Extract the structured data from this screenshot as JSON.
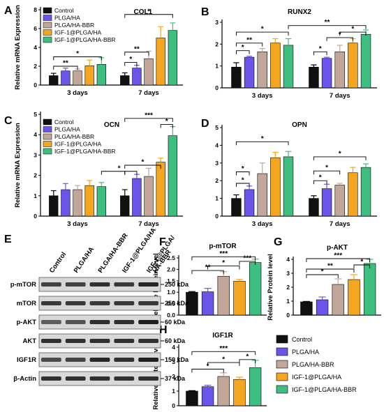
{
  "groups": [
    "Control",
    "PLGA/HA",
    "PLGA/HA-BBR",
    "IGF-1@PLGA/HA",
    "IGF-1@PLGA/HA-BBR"
  ],
  "colors": {
    "Control": "#111111",
    "PLGA/HA": "#6a55e8",
    "PLGA/HA-BBR": "#c1a699",
    "IGF-1@PLGA/HA": "#f4a620",
    "IGF-1@PLGA/HA-BBR": "#3fbf7f"
  },
  "chart_data": [
    {
      "id": "A",
      "type": "bar",
      "title": "COL1",
      "ylabel": "Relative mRNA Expression",
      "ylim": [
        0,
        8
      ],
      "yticks": [
        0,
        2,
        4,
        6,
        8
      ],
      "categories": [
        "3 days",
        "7 days"
      ],
      "legend": "top-left",
      "series": [
        {
          "name": "Control",
          "values": [
            1.0,
            1.0
          ],
          "errors": [
            0.25,
            0.3
          ]
        },
        {
          "name": "PLGA/HA",
          "values": [
            1.5,
            1.8
          ],
          "errors": [
            0.3,
            0.3
          ]
        },
        {
          "name": "PLGA/HA-BBR",
          "values": [
            1.5,
            2.8
          ],
          "errors": [
            0.2,
            0.8
          ]
        },
        {
          "name": "IGF-1@PLGA/HA",
          "values": [
            2.05,
            5.0
          ],
          "errors": [
            0.6,
            1.2
          ]
        },
        {
          "name": "IGF-1@PLGA/HA-BBR",
          "values": [
            2.2,
            5.8
          ],
          "errors": [
            0.7,
            0.8
          ]
        }
      ],
      "significance": [
        {
          "label": "**",
          "y": 2.0,
          "spans": [
            [
              0,
              0,
              0,
              2
            ]
          ]
        },
        {
          "label": "*",
          "y": 3.0,
          "spans": [
            [
              0,
              0,
              0,
              4
            ]
          ]
        },
        {
          "label": "*",
          "y": 2.4,
          "spans": [
            [
              1,
              0,
              1,
              1
            ]
          ]
        },
        {
          "label": "**",
          "y": 3.5,
          "spans": [
            [
              1,
              0,
              1,
              2
            ]
          ]
        },
        {
          "label": "*",
          "y": 7.5,
          "spans": [
            [
              1,
              0,
              1,
              4
            ]
          ]
        }
      ]
    },
    {
      "id": "B",
      "type": "bar",
      "title": "RUNX2",
      "ylabel": "",
      "ylim": [
        0,
        3
      ],
      "yticks": [
        0,
        1,
        2,
        3
      ],
      "categories": [
        "3 days",
        "7 days"
      ],
      "series": [
        {
          "name": "Control",
          "values": [
            0.95,
            0.95
          ],
          "errors": [
            0.2,
            0.1
          ]
        },
        {
          "name": "PLGA/HA",
          "values": [
            1.4,
            1.35
          ],
          "errors": [
            0.05,
            0.05
          ]
        },
        {
          "name": "PLGA/HA-BBR",
          "values": [
            1.65,
            1.65
          ],
          "errors": [
            0.15,
            0.3
          ]
        },
        {
          "name": "IGF-1@PLGA/HA",
          "values": [
            2.05,
            2.05
          ],
          "errors": [
            0.2,
            0.2
          ]
        },
        {
          "name": "IGF-1@PLGA/HA-BBR",
          "values": [
            1.95,
            2.45
          ],
          "errors": [
            0.3,
            0.2
          ]
        }
      ],
      "significance": [
        {
          "label": "*",
          "y": 1.7,
          "spans": [
            [
              0,
              0,
              0,
              1
            ]
          ]
        },
        {
          "label": "**",
          "y": 2.05,
          "spans": [
            [
              0,
              0,
              0,
              2
            ]
          ]
        },
        {
          "label": "*",
          "y": 2.55,
          "spans": [
            [
              0,
              0,
              0,
              4
            ]
          ]
        },
        {
          "label": "*",
          "y": 1.65,
          "spans": [
            [
              1,
              0,
              1,
              1
            ]
          ]
        },
        {
          "label": "*",
          "y": 2.3,
          "spans": [
            [
              1,
              1,
              1,
              3
            ]
          ]
        },
        {
          "label": "*",
          "y": 2.55,
          "spans": [
            [
              1,
              2,
              1,
              4
            ]
          ]
        },
        {
          "label": "**",
          "y": 2.85,
          "spans": [
            [
              0,
              4,
              1,
              4
            ]
          ]
        }
      ]
    },
    {
      "id": "C",
      "type": "bar",
      "title": "OCN",
      "ylabel": "Relative mRNA Expression",
      "ylim": [
        0,
        5
      ],
      "yticks": [
        0,
        1,
        2,
        3,
        4,
        5
      ],
      "categories": [
        "3 days",
        "7 days"
      ],
      "legend": "top-left",
      "series": [
        {
          "name": "Control",
          "values": [
            1.0,
            1.0
          ],
          "errors": [
            0.25,
            0.3
          ]
        },
        {
          "name": "PLGA/HA",
          "values": [
            1.3,
            1.85
          ],
          "errors": [
            0.3,
            0.2
          ]
        },
        {
          "name": "PLGA/HA-BBR",
          "values": [
            1.3,
            1.95
          ],
          "errors": [
            0.2,
            0.4
          ]
        },
        {
          "name": "IGF-1@PLGA/HA",
          "values": [
            1.5,
            2.65
          ],
          "errors": [
            0.25,
            0.2
          ]
        },
        {
          "name": "IGF-1@PLGA/HA-BBR",
          "values": [
            1.45,
            3.95
          ],
          "errors": [
            0.2,
            0.45
          ]
        }
      ],
      "significance": [
        {
          "label": "*",
          "y": 2.2,
          "spans": [
            [
              0,
              4,
              1,
              0
            ],
            [
              1,
              0,
              1,
              1
            ]
          ]
        },
        {
          "label": "*",
          "y": 2.5,
          "spans": [
            [
              1,
              0,
              1,
              3
            ]
          ]
        },
        {
          "label": "*",
          "y": 4.5,
          "spans": [
            [
              1,
              3,
              1,
              4
            ]
          ]
        },
        {
          "label": "***",
          "y": 4.8,
          "spans": [
            [
              1,
              0,
              1,
              4
            ]
          ]
        }
      ]
    },
    {
      "id": "D",
      "type": "bar",
      "title": "OPN",
      "ylabel": "",
      "ylim": [
        0,
        5
      ],
      "yticks": [
        0,
        1,
        2,
        3,
        4,
        5
      ],
      "categories": [
        "3 days",
        "7 days"
      ],
      "series": [
        {
          "name": "Control",
          "values": [
            1.0,
            1.0
          ],
          "errors": [
            0.2,
            0.15
          ]
        },
        {
          "name": "PLGA/HA",
          "values": [
            1.5,
            1.55
          ],
          "errors": [
            0.2,
            0.25
          ]
        },
        {
          "name": "PLGA/HA-BBR",
          "values": [
            2.4,
            1.75
          ],
          "errors": [
            0.6,
            0.1
          ]
        },
        {
          "name": "IGF-1@PLGA/HA",
          "values": [
            3.3,
            2.45
          ],
          "errors": [
            0.3,
            0.3
          ]
        },
        {
          "name": "IGF-1@PLGA/HA-BBR",
          "values": [
            3.35,
            2.75
          ],
          "errors": [
            0.3,
            0.2
          ]
        }
      ],
      "significance": [
        {
          "label": "*",
          "y": 1.85,
          "spans": [
            [
              0,
              0,
              0,
              1
            ]
          ]
        },
        {
          "label": "*",
          "y": 2.5,
          "spans": [
            [
              0,
              0,
              0,
              1
            ]
          ]
        },
        {
          "label": "*",
          "y": 4.2,
          "spans": [
            [
              0,
              0,
              0,
              4
            ]
          ]
        },
        {
          "label": "*",
          "y": 2.0,
          "spans": [
            [
              1,
              0,
              1,
              1
            ]
          ]
        },
        {
          "label": "*",
          "y": 2.55,
          "spans": [
            [
              1,
              0,
              1,
              2
            ]
          ]
        },
        {
          "label": "*",
          "y": 3.35,
          "spans": [
            [
              1,
              0,
              1,
              4
            ]
          ]
        }
      ]
    },
    {
      "id": "F",
      "type": "bar",
      "title": "p-mTOR",
      "ylabel": "Relative Protein level",
      "ylim": [
        0,
        2.5
      ],
      "yticks": [
        0.0,
        0.5,
        1.0,
        1.5,
        2.0,
        2.5
      ],
      "categories": [
        ""
      ],
      "series": [
        {
          "name": "Control",
          "values": [
            1.0
          ],
          "errors": [
            0.03
          ]
        },
        {
          "name": "PLGA/HA",
          "values": [
            1.02
          ],
          "errors": [
            0.15
          ]
        },
        {
          "name": "PLGA/HA-BBR",
          "values": [
            1.7
          ],
          "errors": [
            0.2
          ]
        },
        {
          "name": "IGF-1@PLGA/HA",
          "values": [
            1.48
          ],
          "errors": [
            0.08
          ]
        },
        {
          "name": "IGF-1@PLGA/HA-BBR",
          "values": [
            2.3
          ],
          "errors": [
            0.15
          ]
        }
      ],
      "significance": [
        {
          "label": "**",
          "y": 1.95,
          "spans": [
            [
              0,
              0,
              0,
              2
            ]
          ]
        },
        {
          "label": "*",
          "y": 2.15,
          "spans": [
            [
              0,
              1,
              0,
              3
            ]
          ]
        },
        {
          "label": "***",
          "y": 2.35,
          "spans": [
            [
              0,
              3,
              0,
              4
            ]
          ]
        },
        {
          "label": "***",
          "y": 2.55,
          "spans": [
            [
              0,
              0,
              0,
              4
            ]
          ]
        }
      ]
    },
    {
      "id": "G",
      "type": "bar",
      "title": "p-AKT",
      "ylabel": "Relative Protein level",
      "ylim": [
        0,
        4
      ],
      "yticks": [
        0,
        1,
        2,
        3,
        4
      ],
      "categories": [
        ""
      ],
      "series": [
        {
          "name": "Control",
          "values": [
            0.95
          ],
          "errors": [
            0.03
          ]
        },
        {
          "name": "PLGA/HA",
          "values": [
            1.1
          ],
          "errors": [
            0.2
          ]
        },
        {
          "name": "PLGA/HA-BBR",
          "values": [
            2.2
          ],
          "errors": [
            0.4
          ]
        },
        {
          "name": "IGF-1@PLGA/HA",
          "values": [
            2.55
          ],
          "errors": [
            0.35
          ]
        },
        {
          "name": "IGF-1@PLGA/HA-BBR",
          "values": [
            3.7
          ],
          "errors": [
            0.3
          ]
        }
      ],
      "significance": [
        {
          "label": "*",
          "y": 2.9,
          "spans": [
            [
              0,
              0,
              0,
              2
            ]
          ]
        },
        {
          "label": "**",
          "y": 3.3,
          "spans": [
            [
              0,
              0,
              0,
              3
            ]
          ]
        },
        {
          "label": "*",
          "y": 3.6,
          "spans": [
            [
              0,
              3,
              0,
              4
            ]
          ]
        },
        {
          "label": "***",
          "y": 4.05,
          "spans": [
            [
              0,
              0,
              0,
              4
            ]
          ]
        }
      ]
    },
    {
      "id": "H",
      "type": "bar",
      "title": "IGF1R",
      "ylabel": "Relative Protein level",
      "ylim": [
        0,
        4
      ],
      "yticks": [
        0,
        1,
        2,
        3,
        4
      ],
      "categories": [
        ""
      ],
      "series": [
        {
          "name": "Control",
          "values": [
            1.0
          ],
          "errors": [
            0.03
          ]
        },
        {
          "name": "PLGA/HA",
          "values": [
            1.3
          ],
          "errors": [
            0.1
          ]
        },
        {
          "name": "PLGA/HA-BBR",
          "values": [
            2.0
          ],
          "errors": [
            0.25
          ]
        },
        {
          "name": "IGF-1@PLGA/HA",
          "values": [
            1.8
          ],
          "errors": [
            0.15
          ]
        },
        {
          "name": "IGF-1@PLGA/HA-BBR",
          "values": [
            2.6
          ],
          "errors": [
            0.5
          ]
        }
      ],
      "significance": [
        {
          "label": "*",
          "y": 2.5,
          "spans": [
            [
              0,
              0,
              0,
              2
            ]
          ]
        },
        {
          "label": "*",
          "y": 2.95,
          "spans": [
            [
              0,
              1,
              0,
              3
            ]
          ]
        },
        {
          "label": "*",
          "y": 3.15,
          "spans": [
            [
              0,
              3,
              0,
              4
            ]
          ]
        },
        {
          "label": "***",
          "y": 3.7,
          "spans": [
            [
              0,
              0,
              0,
              4
            ]
          ]
        }
      ]
    }
  ],
  "western_blot": {
    "panel_label": "E",
    "lanes": [
      "Control",
      "PLGA/HA",
      "PLGA/HA-BBR",
      "IGF-1@PLGA/HA",
      "IGF-1@PLGA/HA-BBR"
    ],
    "lane_header_lines": [
      [
        "Control"
      ],
      [
        "PLGA/HA"
      ],
      [
        "PLGA/HA-BBR"
      ],
      [
        "IGF-1@PLGA/HA"
      ],
      [
        "IGF-1@PLGA/",
        "HA-BBR"
      ]
    ],
    "rows": [
      {
        "protein": "p-mTOR",
        "size": "250 kDa",
        "intensity": [
          0.75,
          0.75,
          0.85,
          0.8,
          0.9
        ]
      },
      {
        "protein": "mTOR",
        "size": "250 kDa",
        "intensity": [
          0.8,
          0.8,
          0.8,
          0.8,
          0.8
        ]
      },
      {
        "protein": "p-AKT",
        "size": "60 kDa",
        "intensity": [
          0.6,
          0.65,
          0.85,
          0.85,
          0.95
        ]
      },
      {
        "protein": "AKT",
        "size": "60 kDa",
        "intensity": [
          0.85,
          0.85,
          0.85,
          0.85,
          0.85
        ]
      },
      {
        "protein": "IGF1R",
        "size": "150 kDa",
        "intensity": [
          0.7,
          0.75,
          0.9,
          0.85,
          0.95
        ]
      },
      {
        "protein": "β-Actin",
        "size": "37 kDa",
        "intensity": [
          0.85,
          0.85,
          0.85,
          0.85,
          0.85
        ]
      }
    ]
  },
  "main_legend": [
    "Control",
    "PLGA/HA",
    "PLGA/HA-BBR",
    "IGF-1@PLGA/HA",
    "IGF-1@PLGA/HA-BBR"
  ]
}
